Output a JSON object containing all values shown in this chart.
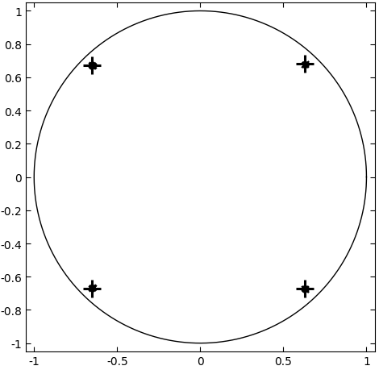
{
  "xlim": [
    -1.05,
    1.05
  ],
  "ylim": [
    -1.05,
    1.05
  ],
  "xticks": [
    -1,
    -0.5,
    0,
    0.5,
    1
  ],
  "yticks": [
    -1,
    -0.8,
    -0.6,
    -0.4,
    -0.2,
    0,
    0.2,
    0.4,
    0.6,
    0.8,
    1
  ],
  "true_poles": [
    [
      -0.65,
      0.67
    ],
    [
      0.63,
      0.68
    ],
    [
      -0.65,
      -0.67
    ],
    [
      0.63,
      -0.67
    ]
  ],
  "identified_clusters": [
    [
      [
        -0.64,
        0.67
      ],
      [
        -0.648,
        0.672
      ],
      [
        -0.653,
        0.669
      ],
      [
        -0.645,
        0.665
      ],
      [
        -0.642,
        0.671
      ],
      [
        -0.65,
        0.668
      ],
      [
        -0.647,
        0.673
      ],
      [
        -0.638,
        0.667
      ],
      [
        -0.655,
        0.671
      ],
      [
        -0.644,
        0.664
      ],
      [
        -0.651,
        0.675
      ],
      [
        -0.643,
        0.668
      ],
      [
        -0.649,
        0.666
      ],
      [
        -0.646,
        0.67
      ],
      [
        -0.652,
        0.667
      ]
    ],
    [
      [
        0.635,
        0.678
      ],
      [
        0.628,
        0.675
      ],
      [
        0.633,
        0.672
      ],
      [
        0.64,
        0.68
      ],
      [
        0.637,
        0.674
      ],
      [
        0.63,
        0.671
      ],
      [
        0.636,
        0.678
      ],
      [
        0.629,
        0.676
      ],
      [
        0.634,
        0.673
      ],
      [
        0.641,
        0.681
      ],
      [
        0.632,
        0.679
      ],
      [
        0.627,
        0.674
      ],
      [
        0.638,
        0.677
      ],
      [
        0.631,
        0.676
      ],
      [
        0.625,
        0.672
      ]
    ],
    [
      [
        -0.64,
        -0.67
      ],
      [
        -0.648,
        -0.672
      ],
      [
        -0.653,
        -0.669
      ],
      [
        -0.645,
        -0.665
      ],
      [
        -0.642,
        -0.671
      ],
      [
        -0.65,
        -0.668
      ],
      [
        -0.647,
        -0.673
      ],
      [
        -0.638,
        -0.667
      ],
      [
        -0.655,
        -0.671
      ],
      [
        -0.644,
        -0.664
      ],
      [
        -0.651,
        -0.675
      ],
      [
        -0.643,
        -0.668
      ],
      [
        -0.649,
        -0.666
      ],
      [
        -0.646,
        -0.67
      ],
      [
        -0.652,
        -0.667
      ]
    ],
    [
      [
        0.635,
        -0.678
      ],
      [
        0.628,
        -0.675
      ],
      [
        0.633,
        -0.672
      ],
      [
        0.64,
        -0.68
      ],
      [
        0.637,
        -0.674
      ],
      [
        0.63,
        -0.671
      ],
      [
        0.636,
        -0.678
      ],
      [
        0.629,
        -0.676
      ],
      [
        0.634,
        -0.673
      ],
      [
        0.641,
        -0.681
      ],
      [
        0.632,
        -0.679
      ],
      [
        0.627,
        -0.674
      ],
      [
        0.638,
        -0.677
      ],
      [
        0.631,
        -0.676
      ],
      [
        0.625,
        -0.672
      ]
    ]
  ],
  "circle_color": "#000000",
  "pole_color": "#000000",
  "true_pole_color": "#000000",
  "background_color": "#ffffff",
  "figsize": [
    4.7,
    4.6
  ],
  "dpi": 100
}
